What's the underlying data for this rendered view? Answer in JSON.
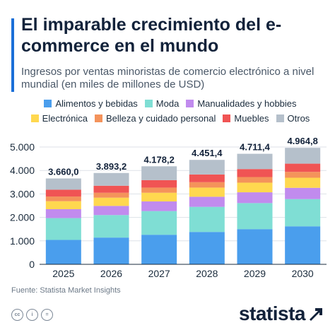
{
  "header": {
    "title": "El imparable crecimiento del e-commerce en el mundo",
    "subtitle": "Ingresos por ventas minoristas de comercio electrónico a nivel mundial (en miles de millones de USD)"
  },
  "chart_data": {
    "type": "bar",
    "stacked": true,
    "categories": [
      "2025",
      "2026",
      "2027",
      "2028",
      "2029",
      "2030"
    ],
    "totals": [
      "3.660,0",
      "3.893,2",
      "4.178,2",
      "4.451,4",
      "4.711,4",
      "4.964,8"
    ],
    "y_ticks": [
      "0",
      "1.000",
      "2.000",
      "3.000",
      "4.000",
      "5.000"
    ],
    "ylim": [
      0,
      5000
    ],
    "grid": true,
    "legend_position": "top",
    "series": [
      {
        "name": "Alimentos y bebidas",
        "color": "#4a9eed",
        "values": [
          1040,
          1140,
          1260,
          1380,
          1500,
          1620
        ]
      },
      {
        "name": "Moda",
        "color": "#7fded4",
        "values": [
          930,
          960,
          1010,
          1070,
          1110,
          1160
        ]
      },
      {
        "name": "Manualidades y hobbies",
        "color": "#c18bee",
        "values": [
          380,
          390,
          410,
          430,
          460,
          480
        ]
      },
      {
        "name": "Electrónica",
        "color": "#ffd84f",
        "values": [
          340,
          350,
          370,
          390,
          410,
          430
        ]
      },
      {
        "name": "Belleza y cuidado personal",
        "color": "#f4935b",
        "values": [
          200,
          210,
          220,
          230,
          240,
          250
        ]
      },
      {
        "name": "Muebles",
        "color": "#f05454",
        "values": [
          290,
          300,
          320,
          330,
          340,
          350
        ]
      },
      {
        "name": "Otros",
        "color": "#b5c0cb",
        "values": [
          480,
          543,
          588,
          621,
          651,
          675
        ]
      }
    ]
  },
  "footer": {
    "source": "Fuente: Statista Market Insights",
    "cc_icons": [
      "cc",
      "i",
      "="
    ],
    "brand": "statista"
  }
}
